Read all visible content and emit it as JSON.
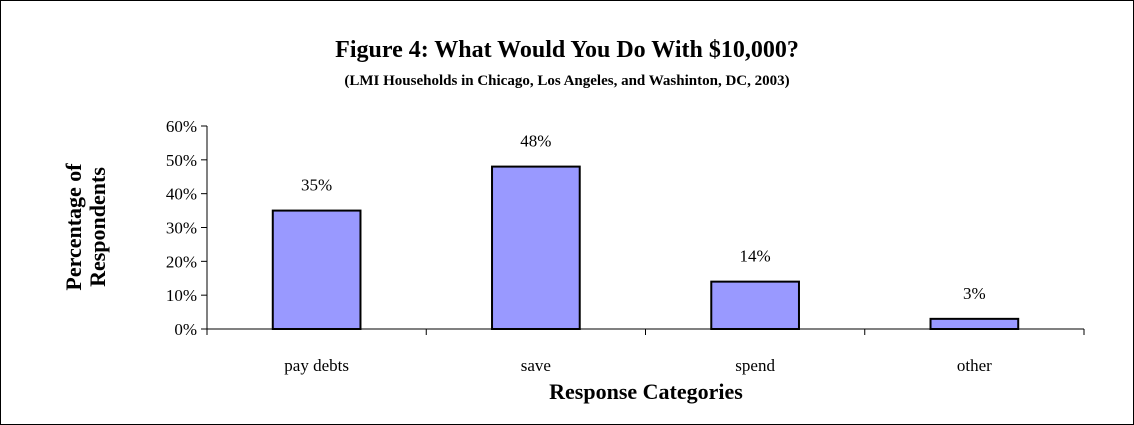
{
  "chart_data": {
    "type": "bar",
    "title": "Figure 4: What Would You Do With $10,000?",
    "subtitle": "(LMI Households in Chicago, Los Angeles, and Washinton, DC, 2003)",
    "xlabel": "Response Categories",
    "ylabel_lines": [
      "Percentage of",
      "Respondents"
    ],
    "categories": [
      "pay debts",
      "save",
      "spend",
      "other"
    ],
    "values": [
      35,
      48,
      14,
      3
    ],
    "data_labels": [
      "35%",
      "48%",
      "14%",
      "3%"
    ],
    "ylim": [
      0,
      60
    ],
    "yticks": [
      0,
      10,
      20,
      30,
      40,
      50,
      60
    ],
    "ytick_labels": [
      "0%",
      "10%",
      "20%",
      "30%",
      "40%",
      "50%",
      "60%"
    ],
    "grid": false,
    "bar_color": "#9999ff",
    "bar_edge_color": "#000000"
  }
}
